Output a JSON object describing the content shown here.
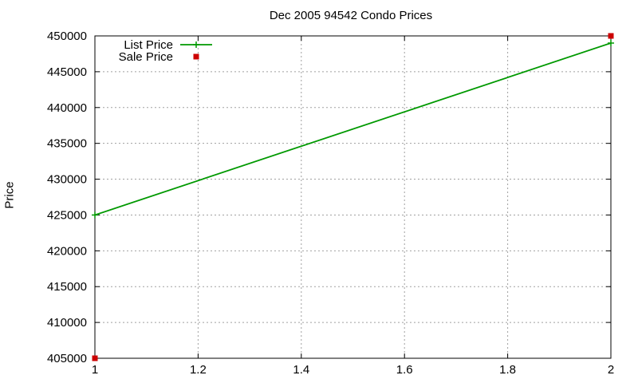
{
  "chart_data": {
    "type": "line",
    "title": "Dec 2005 94542 Condo Prices",
    "xlabel": "",
    "ylabel": "Price",
    "xlim": [
      1,
      2
    ],
    "ylim": [
      405000,
      450000
    ],
    "x_ticks": [
      "1",
      "1.2",
      "1.4",
      "1.6",
      "1.8",
      "2"
    ],
    "y_ticks": [
      "405000",
      "410000",
      "415000",
      "420000",
      "425000",
      "430000",
      "435000",
      "440000",
      "445000",
      "450000"
    ],
    "grid": true,
    "legend_position": "top-left",
    "series": [
      {
        "name": "List Price",
        "style": "line-with-plus-markers",
        "color": "#009900",
        "points": [
          [
            1,
            425000
          ],
          [
            2,
            449000
          ]
        ]
      },
      {
        "name": "Sale Price",
        "style": "square-markers",
        "color": "#cc0000",
        "points": [
          [
            1,
            405000
          ],
          [
            2,
            450000
          ]
        ]
      }
    ]
  }
}
